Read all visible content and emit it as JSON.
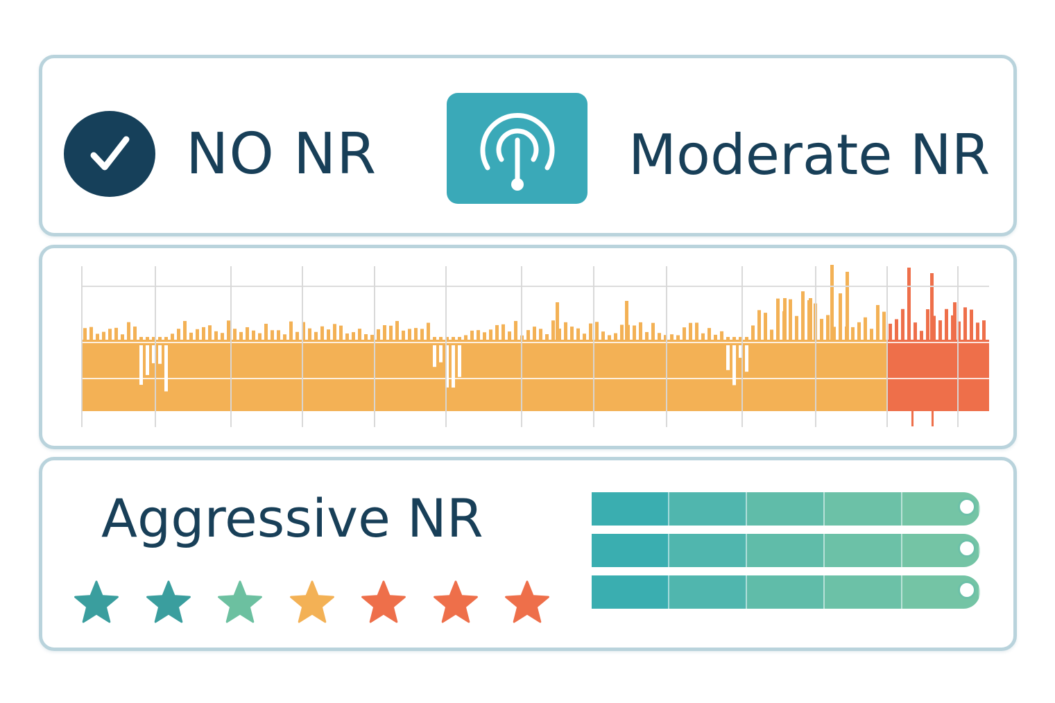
{
  "labels": {
    "no_nr": "NO NR",
    "moderate_nr": "Moderate NR",
    "aggressive_nr": "Aggressive NR"
  },
  "icons": {
    "check": "check-circle-icon",
    "gauge": "gauge-icon"
  },
  "colors": {
    "navy": "#16405a",
    "teal": "#3aa9b8",
    "waveform": "#f3b155",
    "waveform_hot": "#ee6f4a",
    "panel_border": "#b9d3dc",
    "slider_start": "#3aaeb0",
    "slider_end": "#74c4a5"
  },
  "stars": {
    "count": 7,
    "colors": [
      "#3a9e9e",
      "#3a9e9e",
      "#6cc0a0",
      "#f3b155",
      "#ee6f4a",
      "#ee6f4a",
      "#ee6f4a"
    ]
  },
  "sliders": {
    "count": 3,
    "segments": 5
  }
}
